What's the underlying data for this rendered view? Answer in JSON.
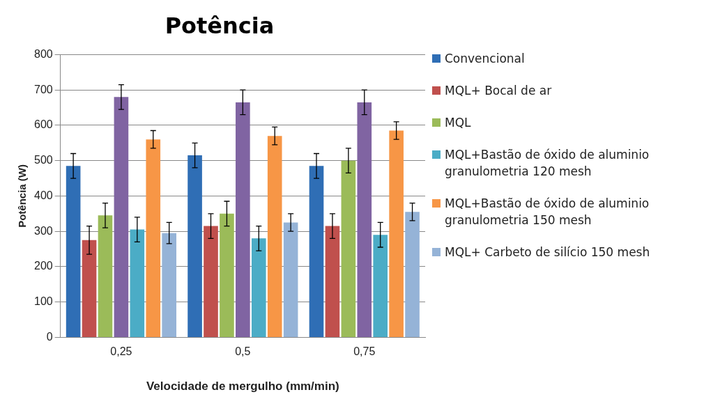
{
  "chart_data": {
    "type": "bar",
    "title": "Potência",
    "xlabel": "Velocidade de mergulho (mm/min)",
    "ylabel": "Potência (W)",
    "categories": [
      "0,25",
      "0,5",
      "0,75"
    ],
    "ylim": [
      0,
      800
    ],
    "yticks": [
      0,
      100,
      200,
      300,
      400,
      500,
      600,
      700,
      800
    ],
    "grid": "y",
    "legend": "right",
    "series": [
      {
        "name": "Convencional",
        "color": "#2f6eb5",
        "values": [
          485,
          515,
          485
        ],
        "errors": [
          35,
          35,
          35
        ]
      },
      {
        "name": "MQL+ Bocal de ar",
        "color": "#c0504d",
        "values": [
          275,
          315,
          315
        ],
        "errors": [
          40,
          35,
          35
        ]
      },
      {
        "name": "MQL",
        "color": "#9bbb59",
        "values": [
          345,
          350,
          500
        ],
        "errors": [
          35,
          35,
          35
        ]
      },
      {
        "color": "#8064a2",
        "values": [
          680,
          665,
          665
        ],
        "errors": [
          35,
          35,
          35
        ]
      },
      {
        "name": "MQL+Bastão de óxido de aluminio granulometria  120 mesh",
        "color": "#4bacc6",
        "values": [
          305,
          280,
          290
        ],
        "errors": [
          35,
          35,
          35
        ]
      },
      {
        "name": "MQL+Bastão de óxido de aluminio granulometria  150 mesh",
        "color": "#f79646",
        "values": [
          560,
          570,
          585
        ],
        "errors": [
          25,
          25,
          25
        ]
      },
      {
        "name": "MQL+ Carbeto de silício 150 mesh",
        "color": "#95b3d7",
        "values": [
          295,
          325,
          355
        ],
        "errors": [
          30,
          25,
          25
        ]
      }
    ]
  }
}
